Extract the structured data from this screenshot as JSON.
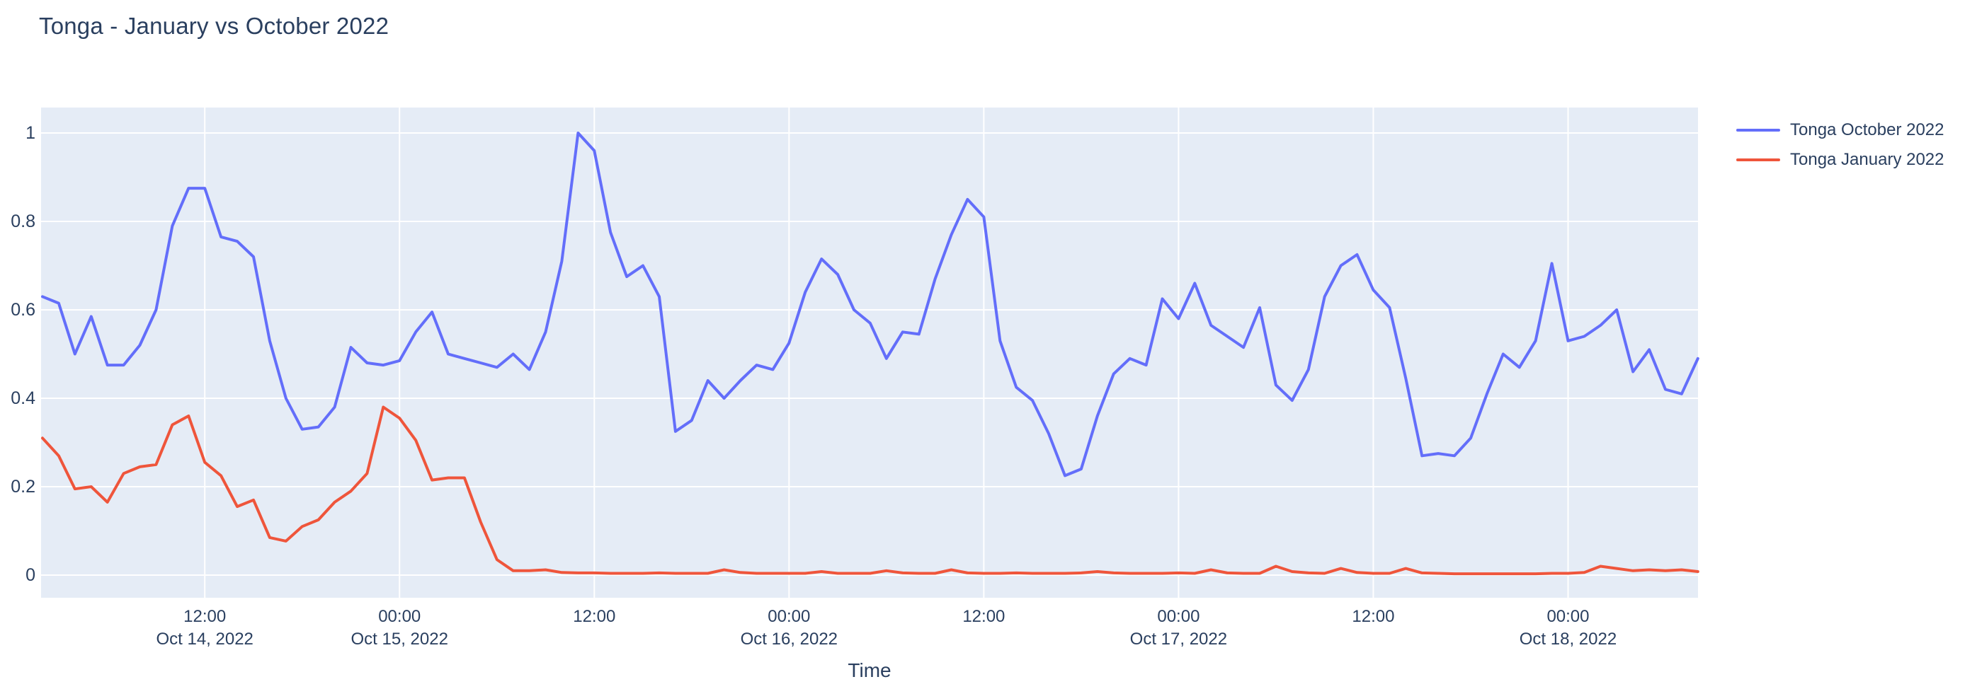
{
  "title": "Tonga - January vs October 2022",
  "colors": {
    "october_line": "#636efa",
    "january_line": "#ef553b",
    "plot_background": "#e5ecf6",
    "gridline": "#ffffff",
    "font": "#2a3f5f",
    "page_background": "#ffffff"
  },
  "legend": {
    "items": [
      {
        "label": "Tonga October 2022",
        "color": "#636efa"
      },
      {
        "label": "Tonga January 2022",
        "color": "#ef553b"
      }
    ]
  },
  "x_axis": {
    "title": "Time",
    "ticks": [
      {
        "hour_index": 10,
        "time": "12:00",
        "date": "Oct 14, 2022"
      },
      {
        "hour_index": 22,
        "time": "00:00",
        "date": "Oct 15, 2022"
      },
      {
        "hour_index": 34,
        "time": "12:00",
        "date": ""
      },
      {
        "hour_index": 46,
        "time": "00:00",
        "date": "Oct 16, 2022"
      },
      {
        "hour_index": 58,
        "time": "12:00",
        "date": ""
      },
      {
        "hour_index": 70,
        "time": "00:00",
        "date": "Oct 17, 2022"
      },
      {
        "hour_index": 82,
        "time": "12:00",
        "date": ""
      },
      {
        "hour_index": 94,
        "time": "00:00",
        "date": "Oct 18, 2022"
      }
    ]
  },
  "y_axis": {
    "ticks": [
      {
        "value": 0,
        "label": "0"
      },
      {
        "value": 0.2,
        "label": "0.2"
      },
      {
        "value": 0.4,
        "label": "0.4"
      },
      {
        "value": 0.6,
        "label": "0.6"
      },
      {
        "value": 0.8,
        "label": "0.8"
      },
      {
        "value": 1,
        "label": "1"
      }
    ]
  },
  "chart_data": {
    "type": "line",
    "title": "Tonga - January vs October 2022",
    "xlabel": "Time",
    "ylabel": "",
    "ylim": [
      0,
      1
    ],
    "grid": true,
    "legend_position": "top-right-outside",
    "x_start": "2022-10-14 02:00",
    "x_end": "2022-10-18 08:00",
    "x_step_hours": 1,
    "series": [
      {
        "name": "Tonga October 2022",
        "color": "#636efa",
        "values": [
          0.63,
          0.615,
          0.5,
          0.585,
          0.475,
          0.475,
          0.52,
          0.6,
          0.79,
          0.875,
          0.875,
          0.765,
          0.755,
          0.72,
          0.53,
          0.4,
          0.33,
          0.335,
          0.38,
          0.515,
          0.48,
          0.475,
          0.485,
          0.55,
          0.595,
          0.5,
          0.49,
          0.48,
          0.47,
          0.5,
          0.465,
          0.55,
          0.71,
          1.0,
          0.96,
          0.775,
          0.675,
          0.7,
          0.63,
          0.325,
          0.35,
          0.44,
          0.4,
          0.44,
          0.475,
          0.465,
          0.525,
          0.64,
          0.715,
          0.68,
          0.6,
          0.57,
          0.49,
          0.55,
          0.545,
          0.67,
          0.77,
          0.85,
          0.81,
          0.53,
          0.425,
          0.395,
          0.32,
          0.225,
          0.24,
          0.36,
          0.455,
          0.49,
          0.475,
          0.625,
          0.58,
          0.66,
          0.565,
          0.54,
          0.515,
          0.605,
          0.43,
          0.395,
          0.465,
          0.63,
          0.7,
          0.725,
          0.645,
          0.605,
          0.445,
          0.27,
          0.275,
          0.27,
          0.31,
          0.41,
          0.5,
          0.47,
          0.53,
          0.705,
          0.53,
          0.54,
          0.565,
          0.6,
          0.46,
          0.51,
          0.42,
          0.41,
          0.49
        ]
      },
      {
        "name": "Tonga January 2022",
        "color": "#ef553b",
        "values": [
          0.31,
          0.27,
          0.195,
          0.2,
          0.165,
          0.23,
          0.245,
          0.25,
          0.34,
          0.36,
          0.255,
          0.225,
          0.155,
          0.17,
          0.085,
          0.077,
          0.11,
          0.125,
          0.165,
          0.19,
          0.23,
          0.38,
          0.355,
          0.305,
          0.215,
          0.22,
          0.22,
          0.12,
          0.035,
          0.01,
          0.01,
          0.012,
          0.006,
          0.005,
          0.005,
          0.004,
          0.004,
          0.004,
          0.005,
          0.004,
          0.004,
          0.004,
          0.012,
          0.006,
          0.004,
          0.004,
          0.004,
          0.004,
          0.008,
          0.004,
          0.004,
          0.004,
          0.01,
          0.005,
          0.004,
          0.004,
          0.012,
          0.005,
          0.004,
          0.004,
          0.005,
          0.004,
          0.004,
          0.004,
          0.005,
          0.008,
          0.005,
          0.004,
          0.004,
          0.004,
          0.005,
          0.004,
          0.012,
          0.005,
          0.004,
          0.004,
          0.02,
          0.008,
          0.005,
          0.004,
          0.015,
          0.006,
          0.004,
          0.004,
          0.015,
          0.005,
          0.004,
          0.003,
          0.003,
          0.003,
          0.003,
          0.003,
          0.003,
          0.004,
          0.004,
          0.006,
          0.02,
          0.015,
          0.01,
          0.012,
          0.01,
          0.012,
          0.008
        ]
      }
    ]
  }
}
